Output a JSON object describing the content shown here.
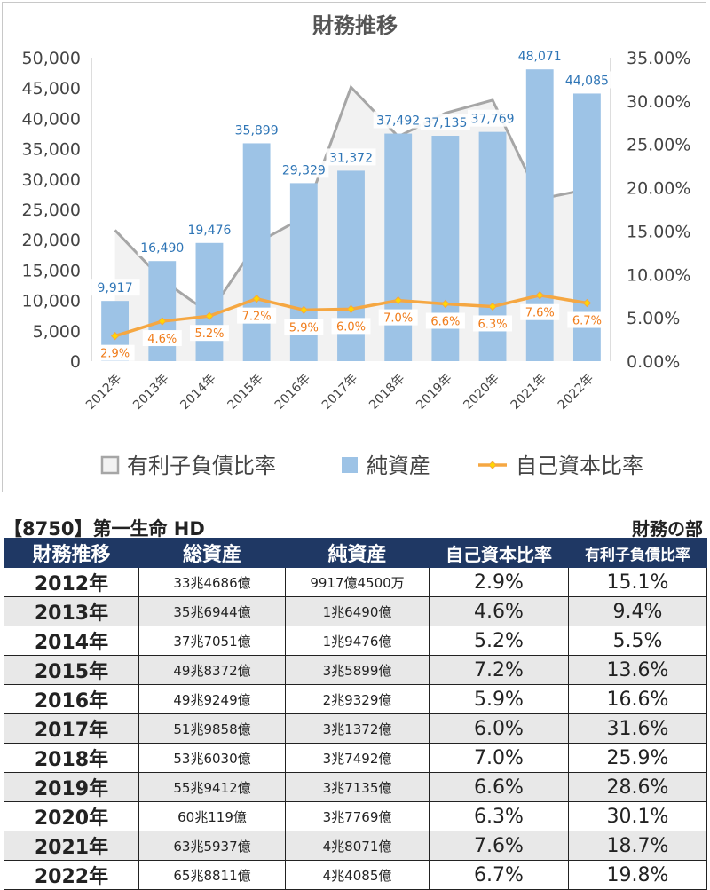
{
  "chart_data": {
    "type": "bar",
    "title": "財務推移",
    "categories": [
      "2012年",
      "2013年",
      "2014年",
      "2015年",
      "2016年",
      "2017年",
      "2018年",
      "2019年",
      "2020年",
      "2021年",
      "2022年"
    ],
    "left_axis": {
      "min": 0,
      "max": 50000,
      "step": 5000,
      "ticks": [
        "0",
        "5,000",
        "10,000",
        "15,000",
        "20,000",
        "25,000",
        "30,000",
        "35,000",
        "40,000",
        "45,000",
        "50,000"
      ]
    },
    "right_axis": {
      "min": 0,
      "max": 35,
      "step": 5,
      "ticks": [
        "0.00%",
        "5.00%",
        "10.00%",
        "15.00%",
        "20.00%",
        "25.00%",
        "30.00%",
        "35.00%"
      ]
    },
    "series": [
      {
        "name": "有利子負債比率",
        "type": "area",
        "axis": "right",
        "values": [
          15.1,
          9.4,
          5.5,
          13.6,
          16.6,
          31.6,
          25.9,
          28.6,
          30.1,
          18.7,
          19.8
        ]
      },
      {
        "name": "純資産",
        "type": "bar",
        "axis": "left",
        "values": [
          9917,
          16490,
          19476,
          35899,
          29329,
          31372,
          37492,
          37135,
          37769,
          48071,
          44085
        ],
        "labels": [
          "9,917",
          "16,490",
          "19,476",
          "35,899",
          "29,329",
          "31,372",
          "37,492",
          "37,135",
          "37,769",
          "48,071",
          "44,085"
        ]
      },
      {
        "name": "自己資本比率",
        "type": "line",
        "axis": "right",
        "values": [
          2.9,
          4.6,
          5.2,
          7.2,
          5.9,
          6.0,
          7.0,
          6.6,
          6.3,
          7.6,
          6.7
        ],
        "labels": [
          "2.9%",
          "4.6%",
          "5.2%",
          "7.2%",
          "5.9%",
          "6.0%",
          "7.0%",
          "6.6%",
          "6.3%",
          "7.6%",
          "6.7%"
        ]
      }
    ],
    "legend_position": "bottom",
    "colors": {
      "bar": "#9dc3e6",
      "area_fill": "#f2f2f2",
      "area_stroke": "#a6a6a6",
      "line": "#f5a742",
      "marker": "#ffd700",
      "bar_label": "#2e75b6",
      "line_label": "#f07c1a"
    }
  },
  "table": {
    "title": "【8750】第一生命 HD",
    "subtitle": "財務の部",
    "headers": [
      "財務推移",
      "総資産",
      "純資産",
      "自己資本比率",
      "有利子負債比率"
    ],
    "rows": [
      [
        "2012年",
        "33兆4686億",
        "9917億4500万",
        "2.9%",
        "15.1%"
      ],
      [
        "2013年",
        "35兆6944億",
        "1兆6490億",
        "4.6%",
        "9.4%"
      ],
      [
        "2014年",
        "37兆7051億",
        "1兆9476億",
        "5.2%",
        "5.5%"
      ],
      [
        "2015年",
        "49兆8372億",
        "3兆5899億",
        "7.2%",
        "13.6%"
      ],
      [
        "2016年",
        "49兆9249億",
        "2兆9329億",
        "5.9%",
        "16.6%"
      ],
      [
        "2017年",
        "51兆9858億",
        "3兆1372億",
        "6.0%",
        "31.6%"
      ],
      [
        "2018年",
        "53兆6030億",
        "3兆7492億",
        "7.0%",
        "25.9%"
      ],
      [
        "2019年",
        "55兆9412億",
        "3兆7135億",
        "6.6%",
        "28.6%"
      ],
      [
        "2020年",
        "60兆119億",
        "3兆7769億",
        "6.3%",
        "30.1%"
      ],
      [
        "2021年",
        "63兆5937億",
        "4兆8071億",
        "7.6%",
        "18.7%"
      ],
      [
        "2022年",
        "65兆8811億",
        "4兆4085億",
        "6.7%",
        "19.8%"
      ]
    ]
  }
}
